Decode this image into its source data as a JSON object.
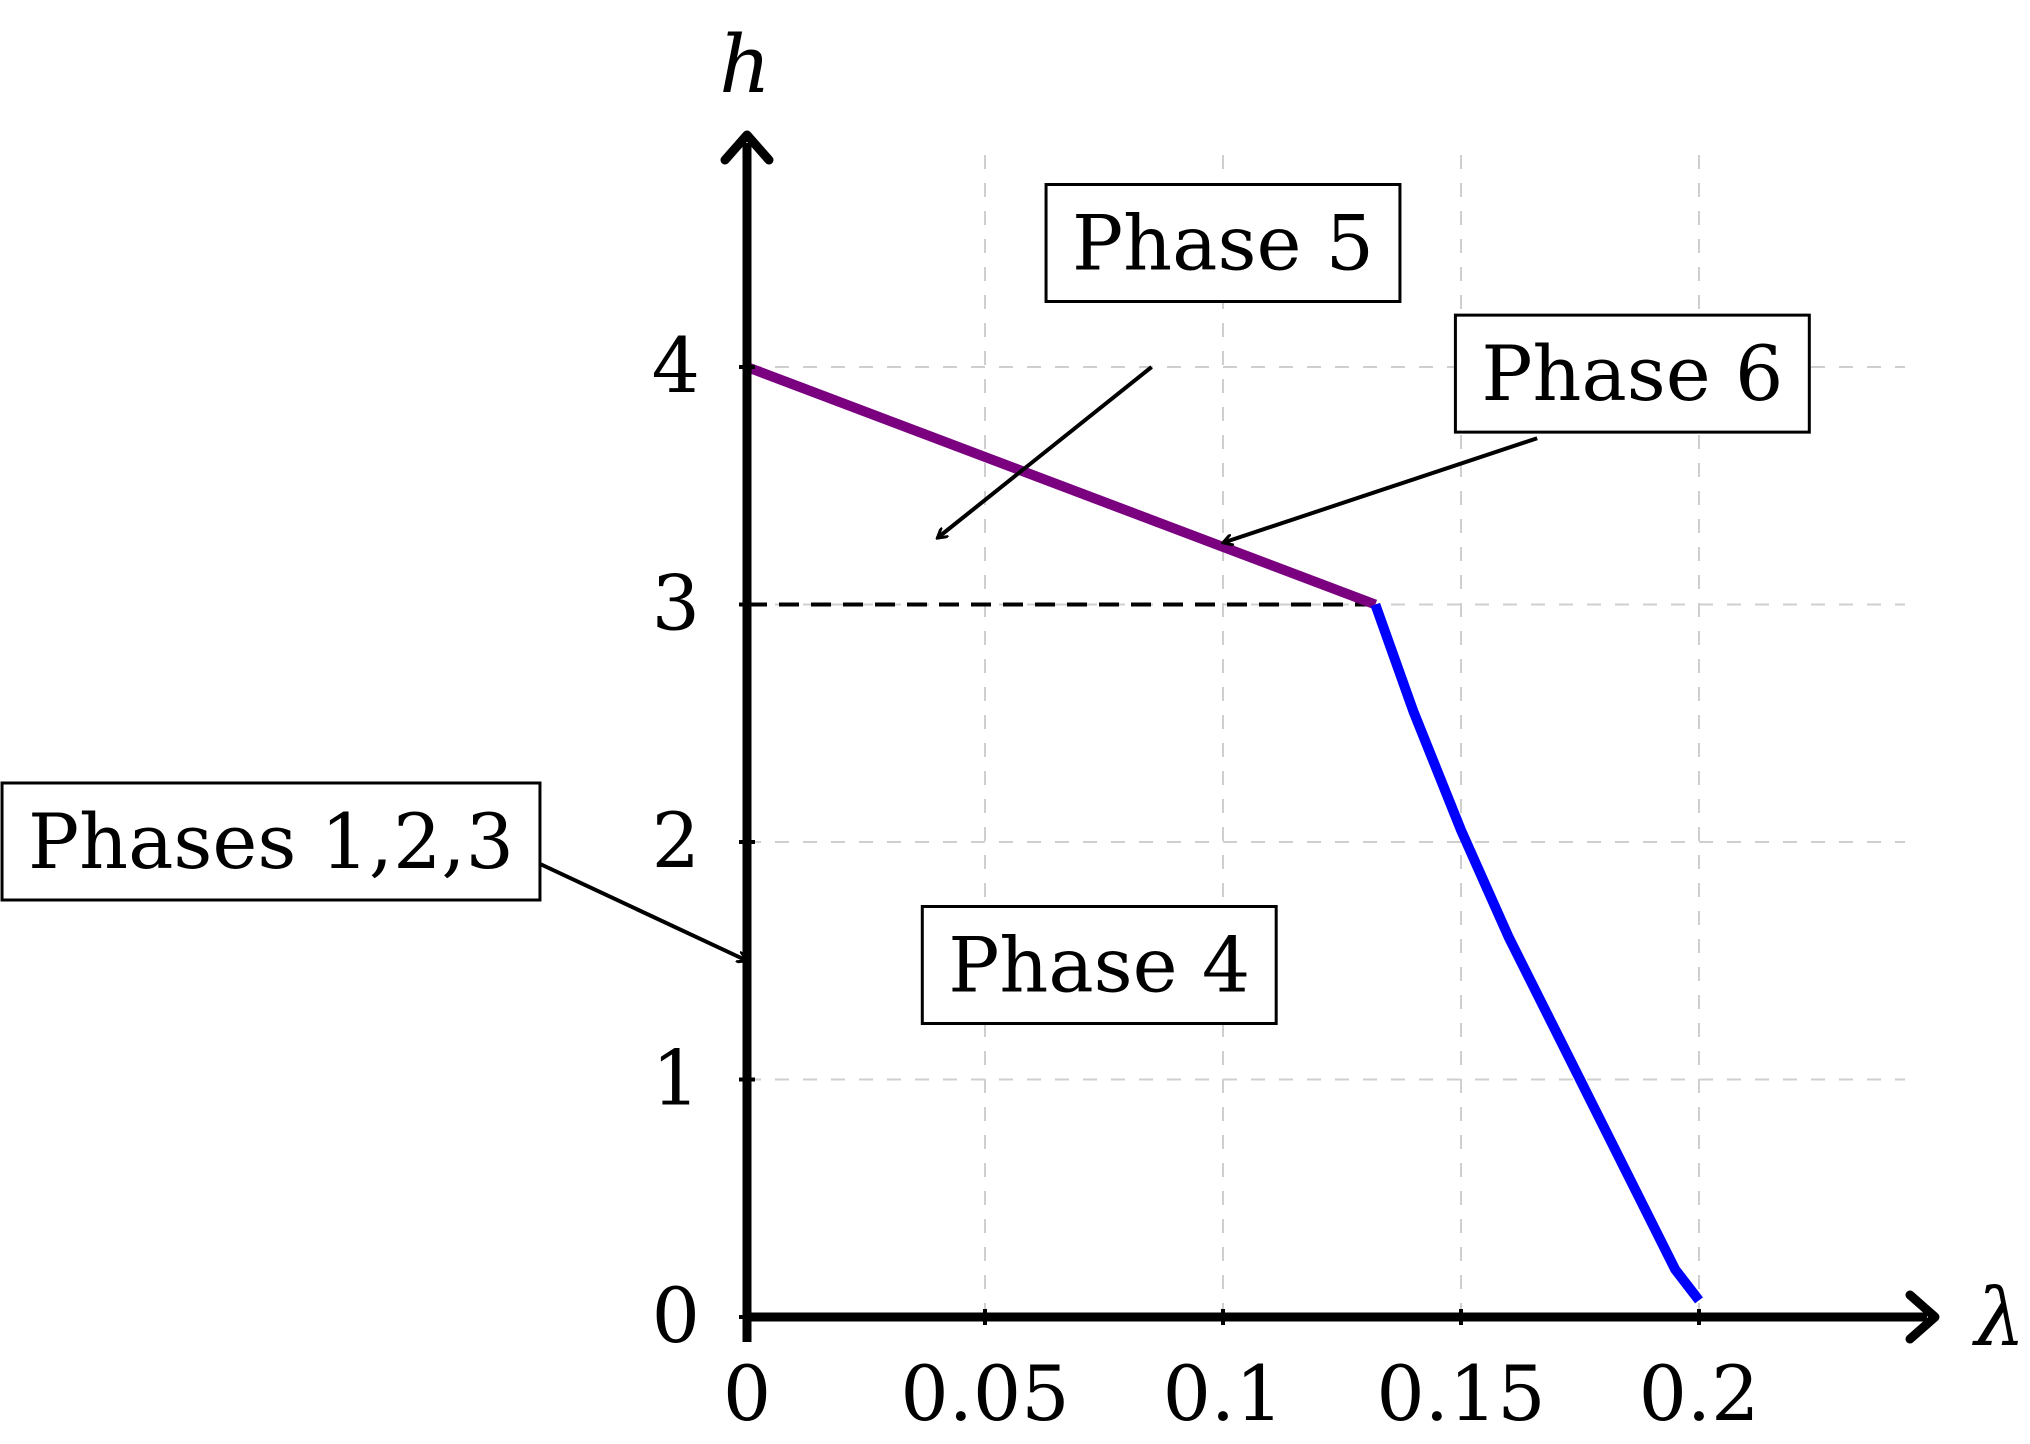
{
  "chart_data": {
    "type": "line",
    "xlabel": "λ",
    "ylabel": "h",
    "xlim": [
      0,
      0.245
    ],
    "ylim": [
      0,
      4.9
    ],
    "grid": true,
    "x_ticks": [
      {
        "value": 0,
        "label": "0"
      },
      {
        "value": 0.05,
        "label": "0.05"
      },
      {
        "value": 0.1,
        "label": "0.1"
      },
      {
        "value": 0.15,
        "label": "0.15"
      },
      {
        "value": 0.2,
        "label": "0.2"
      }
    ],
    "y_ticks": [
      {
        "value": 0,
        "label": "0"
      },
      {
        "value": 1,
        "label": "1"
      },
      {
        "value": 2,
        "label": "2"
      },
      {
        "value": 3,
        "label": "3"
      },
      {
        "value": 4,
        "label": "4"
      }
    ],
    "series": [
      {
        "color": "#7a0080",
        "x": [
          0,
          0.132
        ],
        "y": [
          4,
          3
        ]
      },
      {
        "color": "#0000ff",
        "x": [
          0.132,
          0.14,
          0.15,
          0.16,
          0.17,
          0.18,
          0.19,
          0.195,
          0.2
        ],
        "y": [
          3,
          2.55,
          2.05,
          1.6,
          1.2,
          0.8,
          0.4,
          0.2,
          0.07
        ]
      }
    ],
    "reference_line": {
      "style": "dashed",
      "x": [
        0,
        0.132
      ],
      "y": [
        3,
        3
      ]
    },
    "annotations": [
      {
        "id": "phase5",
        "text": "Phase 5",
        "box_at": [
          0.1,
          4.52
        ],
        "arrow_from": [
          0.085,
          4.0
        ],
        "arrow_to": [
          0.04,
          3.28
        ]
      },
      {
        "id": "phase6",
        "text": "Phase 6",
        "box_at": [
          0.186,
          3.97
        ],
        "arrow_from": [
          0.166,
          3.7
        ],
        "arrow_to": [
          0.1,
          3.26
        ]
      },
      {
        "id": "phases123",
        "text": "Phases 1,2,3",
        "box_at": [
          -0.1,
          2.0
        ],
        "arrow_from": [
          -0.048,
          1.95
        ],
        "arrow_to": [
          0,
          1.5
        ]
      },
      {
        "id": "phase4",
        "text": "Phase 4",
        "box_at": [
          0.074,
          1.48
        ]
      }
    ]
  }
}
